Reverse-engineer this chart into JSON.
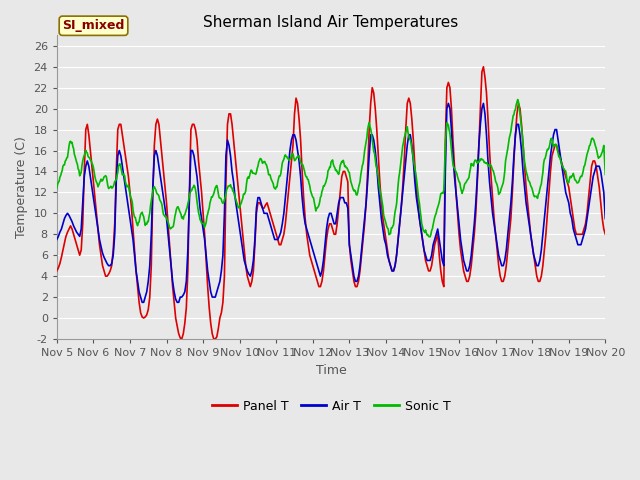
{
  "title": "Sherman Island Air Temperatures",
  "xlabel": "Time",
  "ylabel": "Temperature (C)",
  "ylim": [
    -2,
    27
  ],
  "xlim": [
    0,
    360
  ],
  "plot_bg": "#e8e8e8",
  "label_box_text": "SI_mixed",
  "label_box_bg": "#ffffcc",
  "label_box_edge": "#8b7000",
  "label_box_text_color": "#880000",
  "series": {
    "panel_t": {
      "color": "#dd0000",
      "label": "Panel T",
      "linewidth": 1.2
    },
    "air_t": {
      "color": "#0000cc",
      "label": "Air T",
      "linewidth": 1.2
    },
    "sonic_t": {
      "color": "#00bb00",
      "label": "Sonic T",
      "linewidth": 1.2
    }
  },
  "xtick_labels": [
    "Nov 5",
    "Nov 6",
    "Nov 7",
    "Nov 8",
    "Nov 9",
    "Nov 10",
    "Nov 11",
    "Nov 12",
    "Nov 13",
    "Nov 14",
    "Nov 15",
    "Nov 16",
    "Nov 17",
    "Nov 18",
    "Nov 19",
    "Nov 20"
  ],
  "xtick_positions": [
    0,
    24,
    48,
    72,
    96,
    120,
    144,
    168,
    192,
    216,
    240,
    264,
    288,
    312,
    336,
    360
  ],
  "ytick_positions": [
    -2,
    0,
    2,
    4,
    6,
    8,
    10,
    12,
    14,
    16,
    18,
    20,
    22,
    24,
    26
  ],
  "grid_color": "#ffffff",
  "title_fontsize": 11,
  "axis_label_fontsize": 9,
  "tick_fontsize": 8,
  "legend_fontsize": 9,
  "annot_fontsize": 9
}
